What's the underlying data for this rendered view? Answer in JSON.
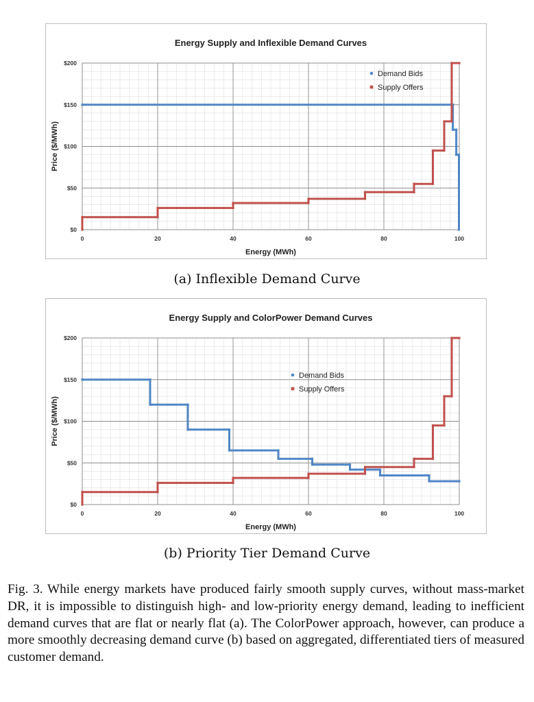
{
  "chart_data": [
    {
      "type": "line",
      "step": true,
      "title": "Energy Supply and Inflexible Demand Curves",
      "xlabel": "Energy (MWh)",
      "ylabel": "Price ($/MWh)",
      "xlim": [
        0,
        100
      ],
      "ylim": [
        0,
        200
      ],
      "xticks": [
        "0",
        "20",
        "40",
        "60",
        "80",
        "100"
      ],
      "yticks": [
        "$0",
        "$50",
        "$100",
        "$150",
        "$200"
      ],
      "grid": true,
      "legend_position": "top-right",
      "series": [
        {
          "name": "Demand Bids",
          "color": "#4f86c6",
          "points": [
            [
              0,
              150
            ],
            [
              98.3,
              150
            ],
            [
              98.3,
              120
            ],
            [
              99.2,
              120
            ],
            [
              99.2,
              90
            ],
            [
              99.9,
              90
            ],
            [
              99.9,
              0
            ]
          ]
        },
        {
          "name": "Supply Offers",
          "color": "#c0504d",
          "points": [
            [
              0,
              0
            ],
            [
              0,
              15
            ],
            [
              20,
              15
            ],
            [
              20,
              26
            ],
            [
              40,
              26
            ],
            [
              40,
              32
            ],
            [
              60,
              32
            ],
            [
              60,
              37
            ],
            [
              75,
              37
            ],
            [
              75,
              45
            ],
            [
              88,
              45
            ],
            [
              88,
              55
            ],
            [
              93,
              55
            ],
            [
              93,
              95
            ],
            [
              96,
              95
            ],
            [
              96,
              130
            ],
            [
              98,
              130
            ],
            [
              98,
              200
            ],
            [
              100,
              200
            ]
          ]
        }
      ]
    },
    {
      "type": "line",
      "step": true,
      "title": "Energy Supply and ColorPower Demand Curves",
      "xlabel": "Energy (MWh)",
      "ylabel": "Price ($/MWh)",
      "xlim": [
        0,
        100
      ],
      "ylim": [
        0,
        200
      ],
      "xticks": [
        "0",
        "20",
        "40",
        "60",
        "80",
        "100"
      ],
      "yticks": [
        "$0",
        "$50",
        "$100",
        "$150",
        "$200"
      ],
      "grid": true,
      "legend_position": "center-right",
      "series": [
        {
          "name": "Demand Bids",
          "color": "#4f86c6",
          "points": [
            [
              0,
              150
            ],
            [
              18,
              150
            ],
            [
              18,
              120
            ],
            [
              28,
              120
            ],
            [
              28,
              90
            ],
            [
              39,
              90
            ],
            [
              39,
              65
            ],
            [
              52,
              65
            ],
            [
              52,
              55
            ],
            [
              61,
              55
            ],
            [
              61,
              48
            ],
            [
              71,
              48
            ],
            [
              71,
              42
            ],
            [
              79,
              42
            ],
            [
              79,
              35
            ],
            [
              92,
              35
            ],
            [
              92,
              28
            ],
            [
              100,
              28
            ]
          ]
        },
        {
          "name": "Supply Offers",
          "color": "#c0504d",
          "points": [
            [
              0,
              0
            ],
            [
              0,
              15
            ],
            [
              20,
              15
            ],
            [
              20,
              26
            ],
            [
              40,
              26
            ],
            [
              40,
              32
            ],
            [
              60,
              32
            ],
            [
              60,
              37
            ],
            [
              75,
              37
            ],
            [
              75,
              45
            ],
            [
              88,
              45
            ],
            [
              88,
              55
            ],
            [
              93,
              55
            ],
            [
              93,
              95
            ],
            [
              96,
              95
            ],
            [
              96,
              130
            ],
            [
              98,
              130
            ],
            [
              98,
              200
            ],
            [
              100,
              200
            ]
          ]
        }
      ]
    }
  ],
  "subcaptions": [
    "(a) Inflexible Demand Curve",
    "(b) Priority Tier Demand Curve"
  ],
  "caption": "Fig. 3.  While energy markets have produced fairly smooth supply curves, without mass-market DR, it is impossible to distinguish high- and low-priority energy demand, leading to inefficient demand curves that are flat or nearly flat (a). The ColorPower approach, however, can produce a more smoothly decreasing demand curve (b) based on aggregated, differentiated tiers of measured customer demand."
}
